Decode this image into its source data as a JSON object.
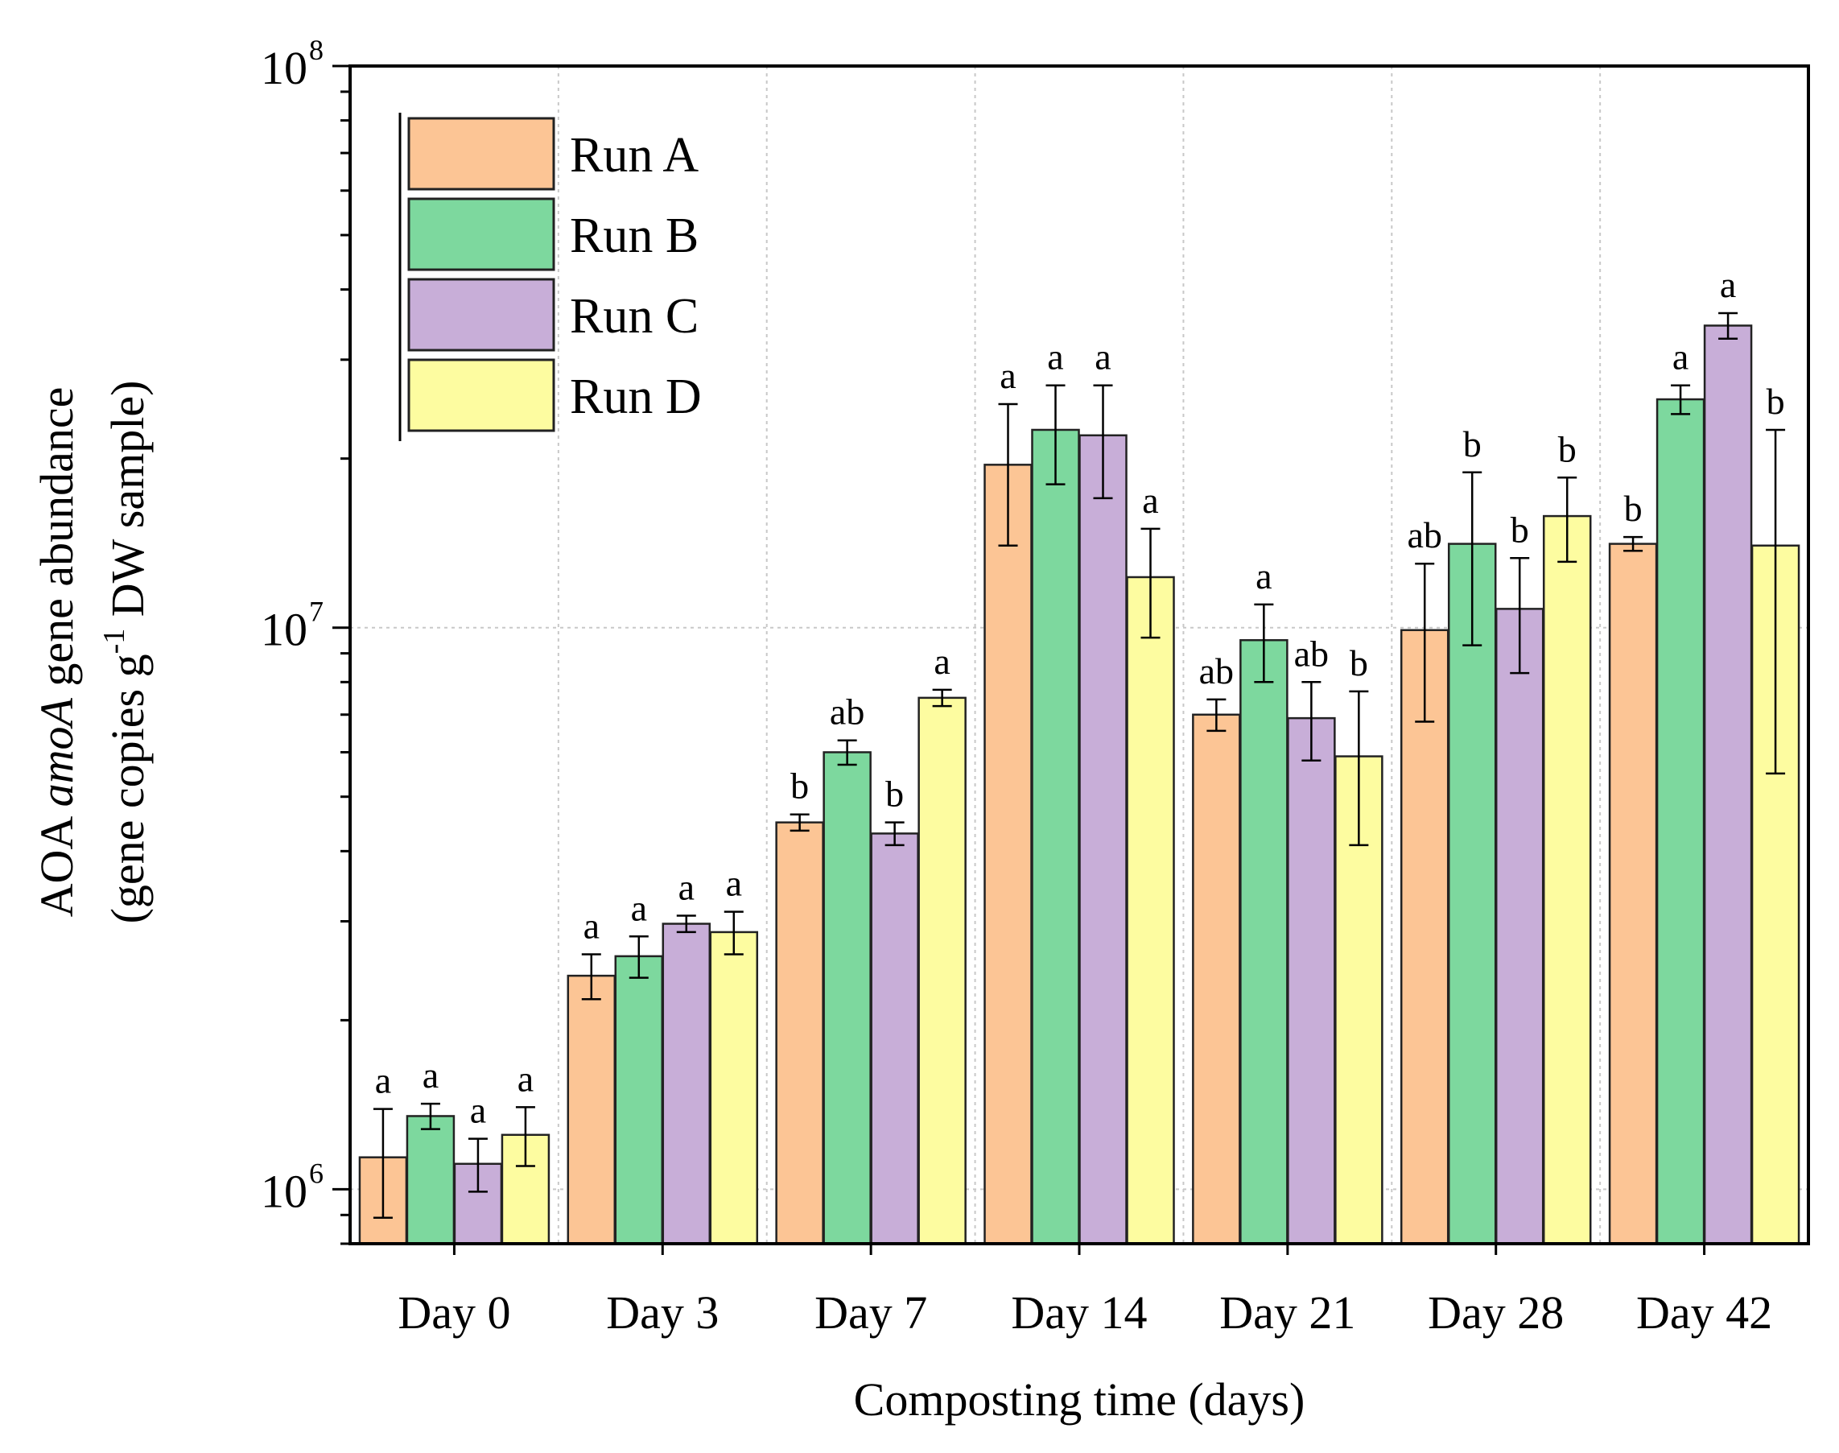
{
  "chart_data": {
    "type": "bar",
    "scale": "log",
    "title": "",
    "xlabel": "Composting time (days)",
    "ylabel": {
      "line1_prefix": "AOA ",
      "line1_italic": "amoA",
      "line1_suffix": " gene abundance",
      "line2_prefix": "(gene copies g",
      "line2_sup": "-1",
      "line2_suffix": " DW sample)"
    },
    "ylim": [
      800000,
      100000000
    ],
    "yticks": [
      {
        "value": 1000000,
        "base": "10",
        "exp": "6"
      },
      {
        "value": 10000000,
        "base": "10",
        "exp": "7"
      },
      {
        "value": 100000000,
        "base": "10",
        "exp": "8"
      }
    ],
    "categories": [
      "Day 0",
      "Day 3",
      "Day 7",
      "Day 14",
      "Day 21",
      "Day 28",
      "Day 42"
    ],
    "legend_position": "top-left",
    "series": [
      {
        "name": "Run A",
        "color": "#fcc595",
        "values": [
          1140000,
          2400000,
          4500000,
          19500000,
          7000000,
          9900000,
          14100000
        ],
        "error": [
          250000,
          220000,
          150000,
          5500000,
          450000,
          3100000,
          400000
        ],
        "labels": [
          "a",
          "a",
          "b",
          "a",
          "ab",
          "ab",
          "b"
        ]
      },
      {
        "name": "Run B",
        "color": "#7dd89e",
        "values": [
          1350000,
          2600000,
          6000000,
          22500000,
          9500000,
          14100000,
          25500000
        ],
        "error": [
          70000,
          220000,
          300000,
          4500000,
          1500000,
          4800000,
          1500000
        ],
        "labels": [
          "a",
          "a",
          "ab",
          "a",
          "a",
          "b",
          "a"
        ]
      },
      {
        "name": "Run C",
        "color": "#c8aed8",
        "values": [
          1110000,
          2970000,
          4300000,
          22000000,
          6900000,
          10800000,
          34500000
        ],
        "error": [
          120000,
          100000,
          200000,
          5000000,
          1100000,
          2500000,
          1800000
        ],
        "labels": [
          "a",
          "a",
          "b",
          "a",
          "ab",
          "b",
          "a"
        ]
      },
      {
        "name": "Run D",
        "color": "#fdfca0",
        "values": [
          1250000,
          2870000,
          7500000,
          12300000,
          5900000,
          15800000,
          14000000
        ],
        "error": [
          150000,
          250000,
          250000,
          2700000,
          1800000,
          2700000,
          8500000
        ],
        "labels": [
          "a",
          "a",
          "a",
          "a",
          "b",
          "b",
          "b"
        ]
      }
    ]
  }
}
